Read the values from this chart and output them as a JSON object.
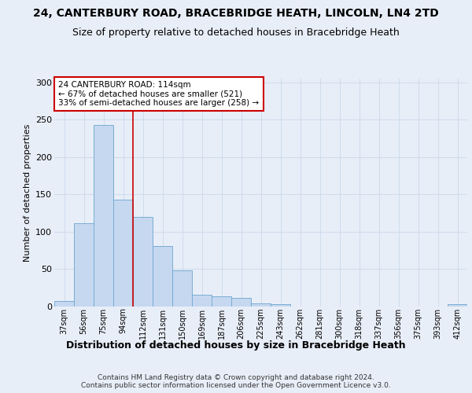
{
  "title": "24, CANTERBURY ROAD, BRACEBRIDGE HEATH, LINCOLN, LN4 2TD",
  "subtitle": "Size of property relative to detached houses in Bracebridge Heath",
  "xlabel": "Distribution of detached houses by size in Bracebridge Heath",
  "ylabel": "Number of detached properties",
  "categories": [
    "37sqm",
    "56sqm",
    "75sqm",
    "94sqm",
    "112sqm",
    "131sqm",
    "150sqm",
    "169sqm",
    "187sqm",
    "206sqm",
    "225sqm",
    "243sqm",
    "262sqm",
    "281sqm",
    "300sqm",
    "318sqm",
    "337sqm",
    "356sqm",
    "375sqm",
    "393sqm",
    "412sqm"
  ],
  "values": [
    7,
    111,
    243,
    143,
    120,
    81,
    48,
    16,
    14,
    12,
    4,
    3,
    0,
    0,
    0,
    0,
    0,
    0,
    0,
    0,
    3
  ],
  "bar_color": "#c5d8f0",
  "bar_edge_color": "#7aadd4",
  "vline_x": 3.5,
  "annotation_line1": "24 CANTERBURY ROAD: 114sqm",
  "annotation_line2": "← 67% of detached houses are smaller (521)",
  "annotation_line3": "33% of semi-detached houses are larger (258) →",
  "annotation_box_facecolor": "#ffffff",
  "annotation_box_edgecolor": "#cc0000",
  "vline_color": "#cc0000",
  "grid_color": "#d0dced",
  "plot_bg_color": "#e8eef8",
  "fig_bg_color": "#e8eef8",
  "footer_text": "Contains HM Land Registry data © Crown copyright and database right 2024.\nContains public sector information licensed under the Open Government Licence v3.0.",
  "ylim_max": 305,
  "title_fontsize": 10,
  "subtitle_fontsize": 9,
  "xlabel_fontsize": 9,
  "ylabel_fontsize": 8,
  "tick_fontsize": 7,
  "ann_fontsize": 7.5,
  "footer_fontsize": 6.5
}
